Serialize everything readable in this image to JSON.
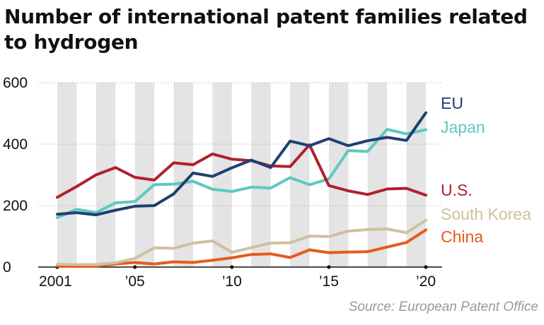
{
  "title": "Number of international patent families related to hydrogen",
  "source": "Source: European Patent Office",
  "chart_data": {
    "type": "line",
    "title": "Number of international patent families related to hydrogen",
    "xlabel": "",
    "ylabel": "",
    "x": [
      2001,
      2002,
      2003,
      2004,
      2005,
      2006,
      2007,
      2008,
      2009,
      2010,
      2011,
      2012,
      2013,
      2014,
      2015,
      2016,
      2017,
      2018,
      2019,
      2020
    ],
    "x_ticks": [
      2001,
      2005,
      2010,
      2015,
      2020
    ],
    "x_tick_labels": [
      "2001",
      "’05",
      "’10",
      "’15",
      "’20"
    ],
    "y_ticks": [
      0,
      200,
      400,
      600
    ],
    "y_tick_labels": [
      "0",
      "200",
      "400",
      "600"
    ],
    "ylim": [
      0,
      600
    ],
    "xlim": [
      2000.5,
      2020.8
    ],
    "grid": "horizontal dotted lines with alternating vertical year bands",
    "legend": "labels at right end of lines",
    "series": [
      {
        "name": "EU",
        "color": "#1f3f73",
        "values": [
          172,
          177,
          170,
          185,
          198,
          200,
          238,
          306,
          295,
          323,
          348,
          324,
          410,
          395,
          418,
          395,
          411,
          422,
          412,
          502
        ]
      },
      {
        "name": "Japan",
        "color": "#5ec8bf",
        "values": [
          161,
          188,
          177,
          209,
          213,
          268,
          270,
          279,
          253,
          246,
          260,
          257,
          291,
          268,
          287,
          379,
          376,
          448,
          433,
          447
        ]
      },
      {
        "name": "U.S.",
        "color": "#b21f2d",
        "values": [
          227,
          262,
          300,
          324,
          292,
          283,
          339,
          333,
          368,
          351,
          346,
          329,
          327,
          398,
          265,
          248,
          236,
          254,
          256,
          234
        ]
      },
      {
        "name": "South Korea",
        "color": "#cfc19e",
        "values": [
          9,
          8,
          8,
          14,
          28,
          63,
          61,
          78,
          85,
          48,
          63,
          78,
          79,
          101,
          99,
          117,
          122,
          124,
          112,
          152
        ]
      },
      {
        "name": "China",
        "color": "#e8591c",
        "values": [
          3,
          2,
          3,
          10,
          15,
          10,
          17,
          15,
          22,
          30,
          41,
          43,
          31,
          56,
          47,
          49,
          50,
          65,
          80,
          121
        ]
      }
    ]
  }
}
